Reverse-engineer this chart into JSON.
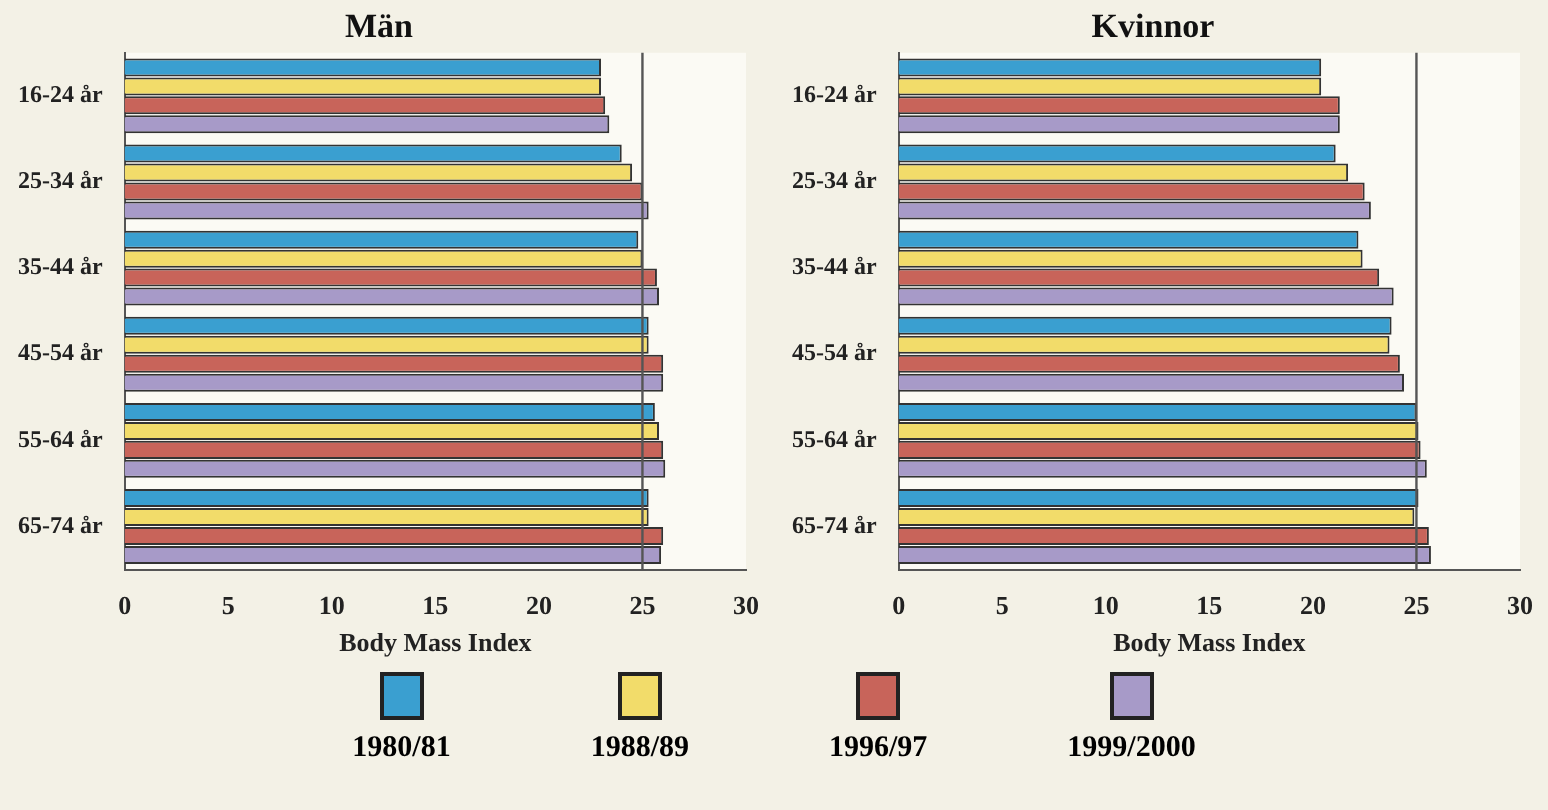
{
  "chart_data": [
    {
      "type": "bar",
      "orientation": "horizontal",
      "title": "Män",
      "xlabel": "Body Mass Index",
      "categories": [
        "16-24 år",
        "25-34 år",
        "35-44 år",
        "45-54 år",
        "55-64 år",
        "65-74 år"
      ],
      "series": [
        {
          "name": "1980/81",
          "color": "#3a9fd0",
          "values": [
            23.0,
            24.0,
            24.8,
            25.3,
            25.6,
            25.3
          ]
        },
        {
          "name": "1988/89",
          "color": "#f2dc6a",
          "values": [
            23.0,
            24.5,
            25.0,
            25.3,
            25.8,
            25.3
          ]
        },
        {
          "name": "1996/97",
          "color": "#c8645a",
          "values": [
            23.2,
            25.0,
            25.7,
            26.0,
            26.0,
            26.0
          ]
        },
        {
          "name": "1999/2000",
          "color": "#a79ac8",
          "values": [
            23.4,
            25.3,
            25.8,
            26.0,
            26.1,
            25.9
          ]
        }
      ],
      "xlim": [
        0,
        30
      ],
      "xticks": [
        0,
        5,
        10,
        15,
        20,
        25,
        30
      ],
      "grid": false,
      "legend": "bottom",
      "ref_lines": [
        {
          "axis": "x",
          "value": 25,
          "color": "#555555"
        }
      ]
    },
    {
      "type": "bar",
      "orientation": "horizontal",
      "title": "Kvinnor",
      "xlabel": "Body Mass Index",
      "categories": [
        "16-24 år",
        "25-34 år",
        "35-44 år",
        "45-54 år",
        "55-64 år",
        "65-74 år"
      ],
      "series": [
        {
          "color": "#3a9fd0",
          "values": [
            20.4,
            21.1,
            22.2,
            23.8,
            25.0,
            25.1
          ]
        },
        {
          "color": "#f2dc6a",
          "values": [
            20.4,
            21.7,
            22.4,
            23.7,
            25.1,
            24.9
          ]
        },
        {
          "color": "#c8645a",
          "values": [
            21.3,
            22.5,
            23.2,
            24.2,
            25.2,
            25.6
          ]
        },
        {
          "color": "#a79ac8",
          "values": [
            21.3,
            22.8,
            23.9,
            24.4,
            25.5,
            25.7
          ]
        }
      ],
      "xlim": [
        0,
        30
      ],
      "xticks": [
        0,
        5,
        10,
        15,
        20,
        25,
        30
      ],
      "grid": false,
      "ref_lines": [
        {
          "axis": "x",
          "value": 25,
          "color": "#555555"
        }
      ]
    }
  ]
}
